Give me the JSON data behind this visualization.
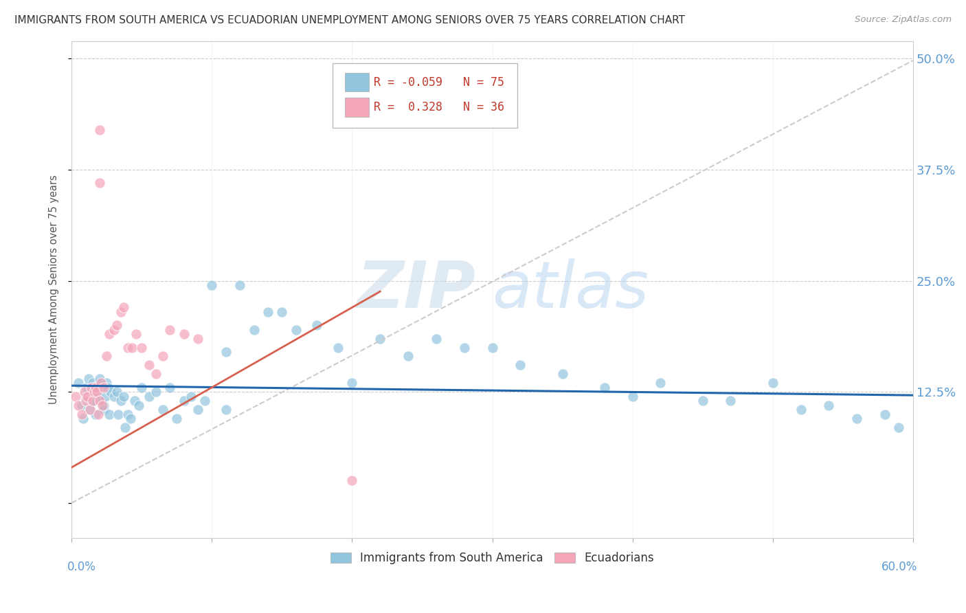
{
  "title": "IMMIGRANTS FROM SOUTH AMERICA VS ECUADORIAN UNEMPLOYMENT AMONG SENIORS OVER 75 YEARS CORRELATION CHART",
  "source": "Source: ZipAtlas.com",
  "ylabel": "Unemployment Among Seniors over 75 years",
  "legend1_label": "Immigrants from South America",
  "legend2_label": "Ecuadorians",
  "R1": -0.059,
  "N1": 75,
  "R2": 0.328,
  "N2": 36,
  "color_blue": "#92c5de",
  "color_pink": "#f4a5b8",
  "trend_blue_color": "#2166ac",
  "trend_pink_color": "#d6604d",
  "trend_dashed_color": "#cccccc",
  "watermark_color": "#ddeeff",
  "xlim": [
    0.0,
    0.6
  ],
  "ylim": [
    -0.04,
    0.52
  ],
  "ytick_vals": [
    0.0,
    0.125,
    0.25,
    0.375,
    0.5
  ],
  "ytick_labels": [
    "",
    "12.5%",
    "25.0%",
    "37.5%",
    "50.0%"
  ],
  "blue_dots_x": [
    0.005,
    0.007,
    0.008,
    0.01,
    0.01,
    0.012,
    0.013,
    0.014,
    0.015,
    0.015,
    0.016,
    0.017,
    0.018,
    0.018,
    0.019,
    0.02,
    0.02,
    0.021,
    0.022,
    0.023,
    0.023,
    0.024,
    0.025,
    0.026,
    0.027,
    0.028,
    0.03,
    0.032,
    0.033,
    0.035,
    0.037,
    0.04,
    0.042,
    0.045,
    0.048,
    0.05,
    0.055,
    0.06,
    0.065,
    0.07,
    0.075,
    0.08,
    0.085,
    0.09,
    0.095,
    0.1,
    0.11,
    0.12,
    0.13,
    0.14,
    0.15,
    0.16,
    0.175,
    0.19,
    0.2,
    0.22,
    0.24,
    0.26,
    0.28,
    0.3,
    0.32,
    0.35,
    0.38,
    0.4,
    0.42,
    0.45,
    0.47,
    0.5,
    0.52,
    0.54,
    0.56,
    0.58,
    0.59,
    0.038,
    0.11
  ],
  "blue_dots_y": [
    0.135,
    0.11,
    0.095,
    0.12,
    0.13,
    0.14,
    0.105,
    0.13,
    0.115,
    0.135,
    0.115,
    0.1,
    0.125,
    0.13,
    0.12,
    0.135,
    0.14,
    0.115,
    0.13,
    0.105,
    0.11,
    0.12,
    0.135,
    0.13,
    0.1,
    0.125,
    0.12,
    0.125,
    0.1,
    0.115,
    0.12,
    0.1,
    0.095,
    0.115,
    0.11,
    0.13,
    0.12,
    0.125,
    0.105,
    0.13,
    0.095,
    0.115,
    0.12,
    0.105,
    0.115,
    0.245,
    0.17,
    0.245,
    0.195,
    0.215,
    0.215,
    0.195,
    0.2,
    0.175,
    0.135,
    0.185,
    0.165,
    0.185,
    0.175,
    0.175,
    0.155,
    0.145,
    0.13,
    0.12,
    0.135,
    0.115,
    0.115,
    0.135,
    0.105,
    0.11,
    0.095,
    0.1,
    0.085,
    0.085,
    0.105
  ],
  "pink_dots_x": [
    0.003,
    0.005,
    0.007,
    0.009,
    0.01,
    0.011,
    0.013,
    0.014,
    0.015,
    0.016,
    0.017,
    0.018,
    0.019,
    0.02,
    0.021,
    0.022,
    0.023,
    0.025,
    0.027,
    0.03,
    0.032,
    0.035,
    0.037,
    0.04,
    0.043,
    0.046,
    0.05,
    0.055,
    0.06,
    0.065,
    0.07,
    0.08,
    0.09,
    0.02,
    0.2,
    0.02
  ],
  "pink_dots_y": [
    0.12,
    0.11,
    0.1,
    0.125,
    0.115,
    0.12,
    0.105,
    0.13,
    0.115,
    0.125,
    0.13,
    0.125,
    0.1,
    0.115,
    0.135,
    0.11,
    0.13,
    0.165,
    0.19,
    0.195,
    0.2,
    0.215,
    0.22,
    0.175,
    0.175,
    0.19,
    0.175,
    0.155,
    0.145,
    0.165,
    0.195,
    0.19,
    0.185,
    0.42,
    0.025,
    0.36
  ]
}
